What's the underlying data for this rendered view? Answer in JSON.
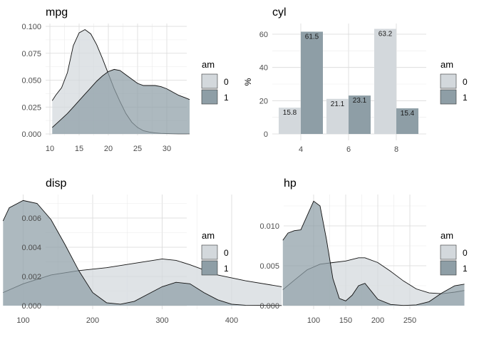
{
  "legend": {
    "title": "am",
    "labels": [
      "0",
      "1"
    ],
    "colors": [
      "#d3d8dc",
      "#8e9ea6"
    ],
    "density_colors": [
      "#dde2e5",
      "#a3b1b8"
    ]
  },
  "chart_data": [
    {
      "type": "area",
      "title": "mpg",
      "xlabel": "",
      "ylabel": "",
      "xlim": [
        10.4,
        33.9
      ],
      "ylim": [
        0,
        0.1
      ],
      "xticks": [
        10,
        15,
        20,
        25,
        30
      ],
      "yticks": [
        "0.000",
        "0.025",
        "0.050",
        "0.075",
        "0.100"
      ],
      "yticks_values": [
        0,
        0.025,
        0.05,
        0.075,
        0.1
      ],
      "grid": true,
      "legend_position": "right",
      "series": [
        {
          "name": "0",
          "x": [
            10.4,
            11,
            12,
            13,
            14,
            15,
            16,
            17,
            18,
            19,
            20,
            21,
            22,
            23,
            24,
            25,
            26,
            27,
            28,
            29,
            30,
            31,
            32,
            33,
            33.9
          ],
          "y": [
            0.031,
            0.036,
            0.043,
            0.057,
            0.082,
            0.094,
            0.097,
            0.093,
            0.083,
            0.07,
            0.056,
            0.042,
            0.03,
            0.019,
            0.011,
            0.006,
            0.003,
            0.0018,
            0.0009,
            0.0005,
            0.0003,
            0.0002,
            0.0001,
            0.0001,
            0.0001
          ]
        },
        {
          "name": "1",
          "x": [
            10.4,
            11,
            12,
            13,
            14,
            15,
            16,
            17,
            18,
            19,
            20,
            21,
            22,
            23,
            24,
            25,
            26,
            27,
            28,
            29,
            30,
            31,
            32,
            33,
            33.9
          ],
          "y": [
            0.006,
            0.009,
            0.014,
            0.019,
            0.025,
            0.031,
            0.037,
            0.043,
            0.049,
            0.054,
            0.058,
            0.06,
            0.059,
            0.055,
            0.051,
            0.047,
            0.045,
            0.045,
            0.045,
            0.044,
            0.042,
            0.039,
            0.036,
            0.034,
            0.032
          ]
        }
      ]
    },
    {
      "type": "bar",
      "title": "cyl",
      "xlabel": "",
      "ylabel": "%",
      "categories": [
        "4",
        "6",
        "8"
      ],
      "ylim": [
        0,
        66
      ],
      "yticks": [
        "0",
        "20",
        "40",
        "60"
      ],
      "yticks_values": [
        0,
        20,
        40,
        60
      ],
      "grid": true,
      "legend_position": "right",
      "series": [
        {
          "name": "0",
          "values": [
            15.8,
            21.1,
            63.2
          ],
          "labels": [
            "15.8",
            "21.1",
            "63.2"
          ]
        },
        {
          "name": "1",
          "values": [
            61.5,
            23.1,
            15.4
          ],
          "labels": [
            "61.5",
            "23.1",
            "15.4"
          ]
        }
      ]
    },
    {
      "type": "area",
      "title": "disp",
      "xlabel": "",
      "ylabel": "",
      "xlim": [
        71.1,
        472
      ],
      "ylim": [
        0,
        0.0076
      ],
      "xticks": [
        100,
        200,
        300,
        400
      ],
      "yticks": [
        "0.000",
        "0.002",
        "0.004",
        "0.006"
      ],
      "yticks_values": [
        0,
        0.002,
        0.004,
        0.006
      ],
      "grid": true,
      "legend_position": "right",
      "series": [
        {
          "name": "0",
          "x": [
            71.1,
            100,
            140,
            180,
            220,
            260,
            300,
            320,
            340,
            380,
            420,
            472
          ],
          "y": [
            0.0009,
            0.0015,
            0.0021,
            0.0024,
            0.0026,
            0.0029,
            0.0032,
            0.0031,
            0.0028,
            0.0021,
            0.0017,
            0.0013
          ]
        },
        {
          "name": "1",
          "x": [
            71.1,
            80,
            100,
            120,
            140,
            160,
            180,
            200,
            220,
            240,
            260,
            280,
            300,
            320,
            340,
            360,
            380,
            400,
            420,
            472
          ],
          "y": [
            0.0058,
            0.0067,
            0.0072,
            0.007,
            0.0059,
            0.0042,
            0.0024,
            0.0009,
            0.0002,
            0.0001,
            0.0003,
            0.0008,
            0.0013,
            0.0016,
            0.0015,
            0.0009,
            0.0004,
            0.0001,
            3e-05,
            1e-05
          ]
        }
      ]
    },
    {
      "type": "area",
      "title": "hp",
      "xlabel": "",
      "ylabel": "",
      "xlim": [
        52,
        335
      ],
      "ylim": [
        0,
        0.014
      ],
      "xticks": [
        100,
        150,
        200,
        250
      ],
      "yticks": [
        "0.000",
        "0.005",
        "0.010"
      ],
      "yticks_values": [
        0,
        0.005,
        0.01
      ],
      "grid": true,
      "legend_position": "right",
      "series": [
        {
          "name": "0",
          "x": [
            52,
            70,
            90,
            110,
            130,
            150,
            170,
            180,
            200,
            220,
            240,
            260,
            280,
            300,
            320,
            335
          ],
          "y": [
            0.002,
            0.0032,
            0.0045,
            0.0052,
            0.0054,
            0.0056,
            0.006,
            0.006,
            0.0054,
            0.0043,
            0.0031,
            0.0021,
            0.0016,
            0.0015,
            0.0017,
            0.0019
          ]
        },
        {
          "name": "1",
          "x": [
            52,
            60,
            70,
            80,
            90,
            100,
            110,
            120,
            130,
            140,
            150,
            160,
            170,
            180,
            190,
            200,
            220,
            240,
            260,
            280,
            300,
            320,
            335
          ],
          "y": [
            0.0082,
            0.0091,
            0.0094,
            0.0095,
            0.0113,
            0.0131,
            0.0125,
            0.0083,
            0.0034,
            0.0009,
            0.0006,
            0.0013,
            0.0025,
            0.0028,
            0.0018,
            0.0008,
            0.00015,
            3e-05,
            0.0001,
            0.0005,
            0.0016,
            0.0025,
            0.0027
          ]
        }
      ]
    }
  ]
}
